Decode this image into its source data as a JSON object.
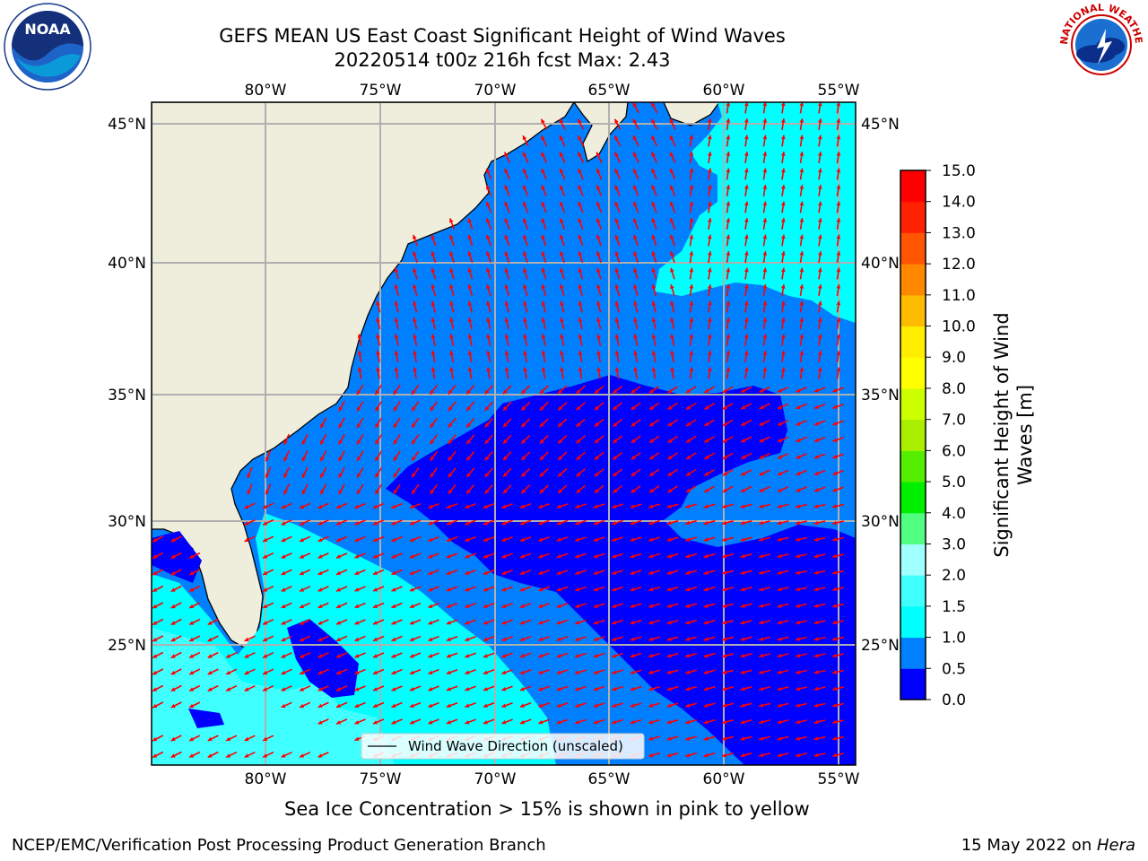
{
  "title": {
    "line1": "GEFS MEAN US East Coast Significant Height of Wind Waves",
    "line2": "20220514 t00z 216h fcst   Max: 2.43"
  },
  "map": {
    "lon_ticks": [
      "80°W",
      "75°W",
      "70°W",
      "65°W",
      "60°W",
      "55°W"
    ],
    "lat_ticks": [
      "45°N",
      "40°N",
      "35°N",
      "30°N",
      "25°N"
    ],
    "lon_range": [
      -85,
      -54.3
    ],
    "lat_range": [
      20.3,
      46.2
    ],
    "legend_label": "Wind Wave Direction (unscaled)",
    "arrow_color": "#ff0000",
    "land_color": "#efeddc",
    "gridlines": true
  },
  "colorbar": {
    "label_line1": "Significant Height of Wind",
    "label_line2": "Waves [m]",
    "tick_labels": [
      "0.0",
      "0.5",
      "1.0",
      "1.5",
      "2.0",
      "3.0",
      "4.0",
      "5.0",
      "6.0",
      "7.0",
      "8.0",
      "9.0",
      "10.0",
      "11.0",
      "12.0",
      "13.0",
      "14.0",
      "15.0"
    ],
    "colors": [
      "#0000ff",
      "#0080ff",
      "#00ffff",
      "#40ffff",
      "#a0ffff",
      "#50ff80",
      "#00ee00",
      "#55ee00",
      "#aaee00",
      "#ccff00",
      "#ffff00",
      "#ffee00",
      "#ffbb00",
      "#ff8800",
      "#ff5500",
      "#ff2200",
      "#ff0000"
    ]
  },
  "note": "Sea Ice Concentration > 15% is shown in pink to yellow",
  "footer": {
    "left": "NCEP/EMC/Verification Post Processing Product Generation Branch",
    "right_prefix": "15 May 2022 on ",
    "right_machine": "Hera"
  },
  "logos": {
    "noaa_text": "NOAA",
    "nws_text": "NATIONAL WEATHER SERVICE"
  }
}
